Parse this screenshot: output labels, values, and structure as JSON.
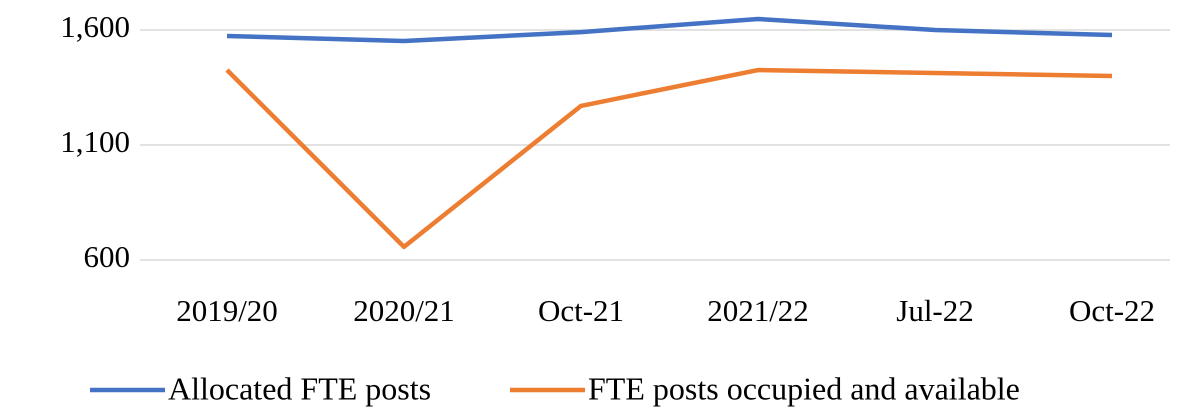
{
  "chart_data": {
    "type": "line",
    "categories": [
      "2019/20",
      "2020/21",
      "Oct-21",
      "2021/22",
      "Jul-22",
      "Oct-22"
    ],
    "series": [
      {
        "name": "Allocated FTE posts",
        "color": "#4472c4",
        "values": [
          1574,
          1552,
          1591,
          1648,
          1600,
          1578
        ]
      },
      {
        "name": "FTE posts occupied and available",
        "color": "#ed7d31",
        "values": [
          1426,
          657,
          1270,
          1426,
          1413,
          1400
        ]
      }
    ],
    "ylim": [
      600,
      1700
    ],
    "yticks": [
      {
        "value": 600,
        "label": "600"
      },
      {
        "value": 1100,
        "label": "1,100"
      },
      {
        "value": 1600,
        "label": "1,600"
      }
    ],
    "grid": true,
    "legend": "bottom"
  }
}
